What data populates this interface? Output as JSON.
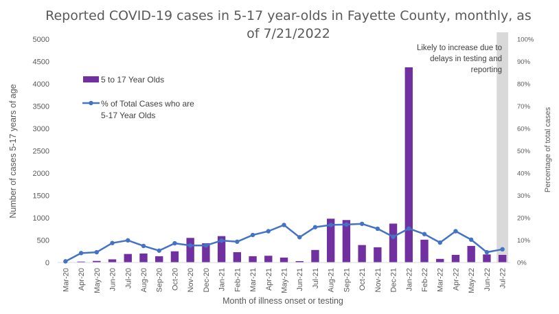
{
  "chart_data": {
    "type": "bar",
    "title_line1": "Reported COVID-19 cases in 5-17 year-olds in Fayette County, monthly, as",
    "title_line2": "of 7/21/2022",
    "xlabel": "Month of illness onset or testing",
    "ylabel": "Number of cases 5-17 years of age",
    "y2label": "Percentage of total cases",
    "ylim": [
      0,
      5000
    ],
    "y_ticks": [
      "0",
      "500",
      "1000",
      "1500",
      "2000",
      "2500",
      "3000",
      "3500",
      "4000",
      "4500",
      "5000"
    ],
    "y2lim": [
      0,
      100
    ],
    "y2_ticks": [
      "0%",
      "10%",
      "20%",
      "30%",
      "40%",
      "50%",
      "60%",
      "70%",
      "80%",
      "90%",
      "100%"
    ],
    "categories": [
      "Mar-20",
      "Apr-20",
      "May-20",
      "Jun-20",
      "Jul-20",
      "Aug-20",
      "Sep-20",
      "Oct-20",
      "Nov-20",
      "Dec-20",
      "Jan-21",
      "Feb-21",
      "Mar-21",
      "Apr-21",
      "May-21",
      "Jun-21",
      "Jul-21",
      "Aug-21",
      "Sep-21",
      "Oct-21",
      "Nov-21",
      "Dec-21",
      "Jan-22",
      "Feb-22",
      "Mar-22",
      "Apr-22",
      "May-22",
      "Jun-22",
      "Jul-22"
    ],
    "series": [
      {
        "name": "5 to 17 Year Olds",
        "type": "bar",
        "axis": "left",
        "color": "#7030A0",
        "values": [
          5,
          20,
          35,
          70,
          190,
          200,
          140,
          250,
          550,
          430,
          590,
          230,
          140,
          150,
          110,
          30,
          280,
          980,
          950,
          390,
          340,
          870,
          4370,
          510,
          80,
          170,
          370,
          180,
          170
        ]
      },
      {
        "name": "% of Total Cases who are 5-17 Year Olds",
        "type": "line",
        "axis": "right",
        "color": "#4472C4",
        "values": [
          0.5,
          4.2,
          4.6,
          8.7,
          9.9,
          7.4,
          5.3,
          8.6,
          7.6,
          7.6,
          9.8,
          9.3,
          12.3,
          14.0,
          16.8,
          11.3,
          15.8,
          16.8,
          17.0,
          17.3,
          15.1,
          11.5,
          15.2,
          12.7,
          8.9,
          14.0,
          10.2,
          4.6,
          5.9
        ]
      }
    ],
    "legend_labels": {
      "bars": "5 to 17 Year Olds",
      "line_1": "% of Total Cases who are",
      "line_2": "5-17 Year Olds"
    },
    "legend_position": "top-left",
    "shaded_region_category": "Jul-22",
    "shaded_color": "#D9D9D9",
    "annotation_lines": [
      "Likely to increase due to",
      "delays in testing and",
      "reporting"
    ],
    "grid": false
  }
}
